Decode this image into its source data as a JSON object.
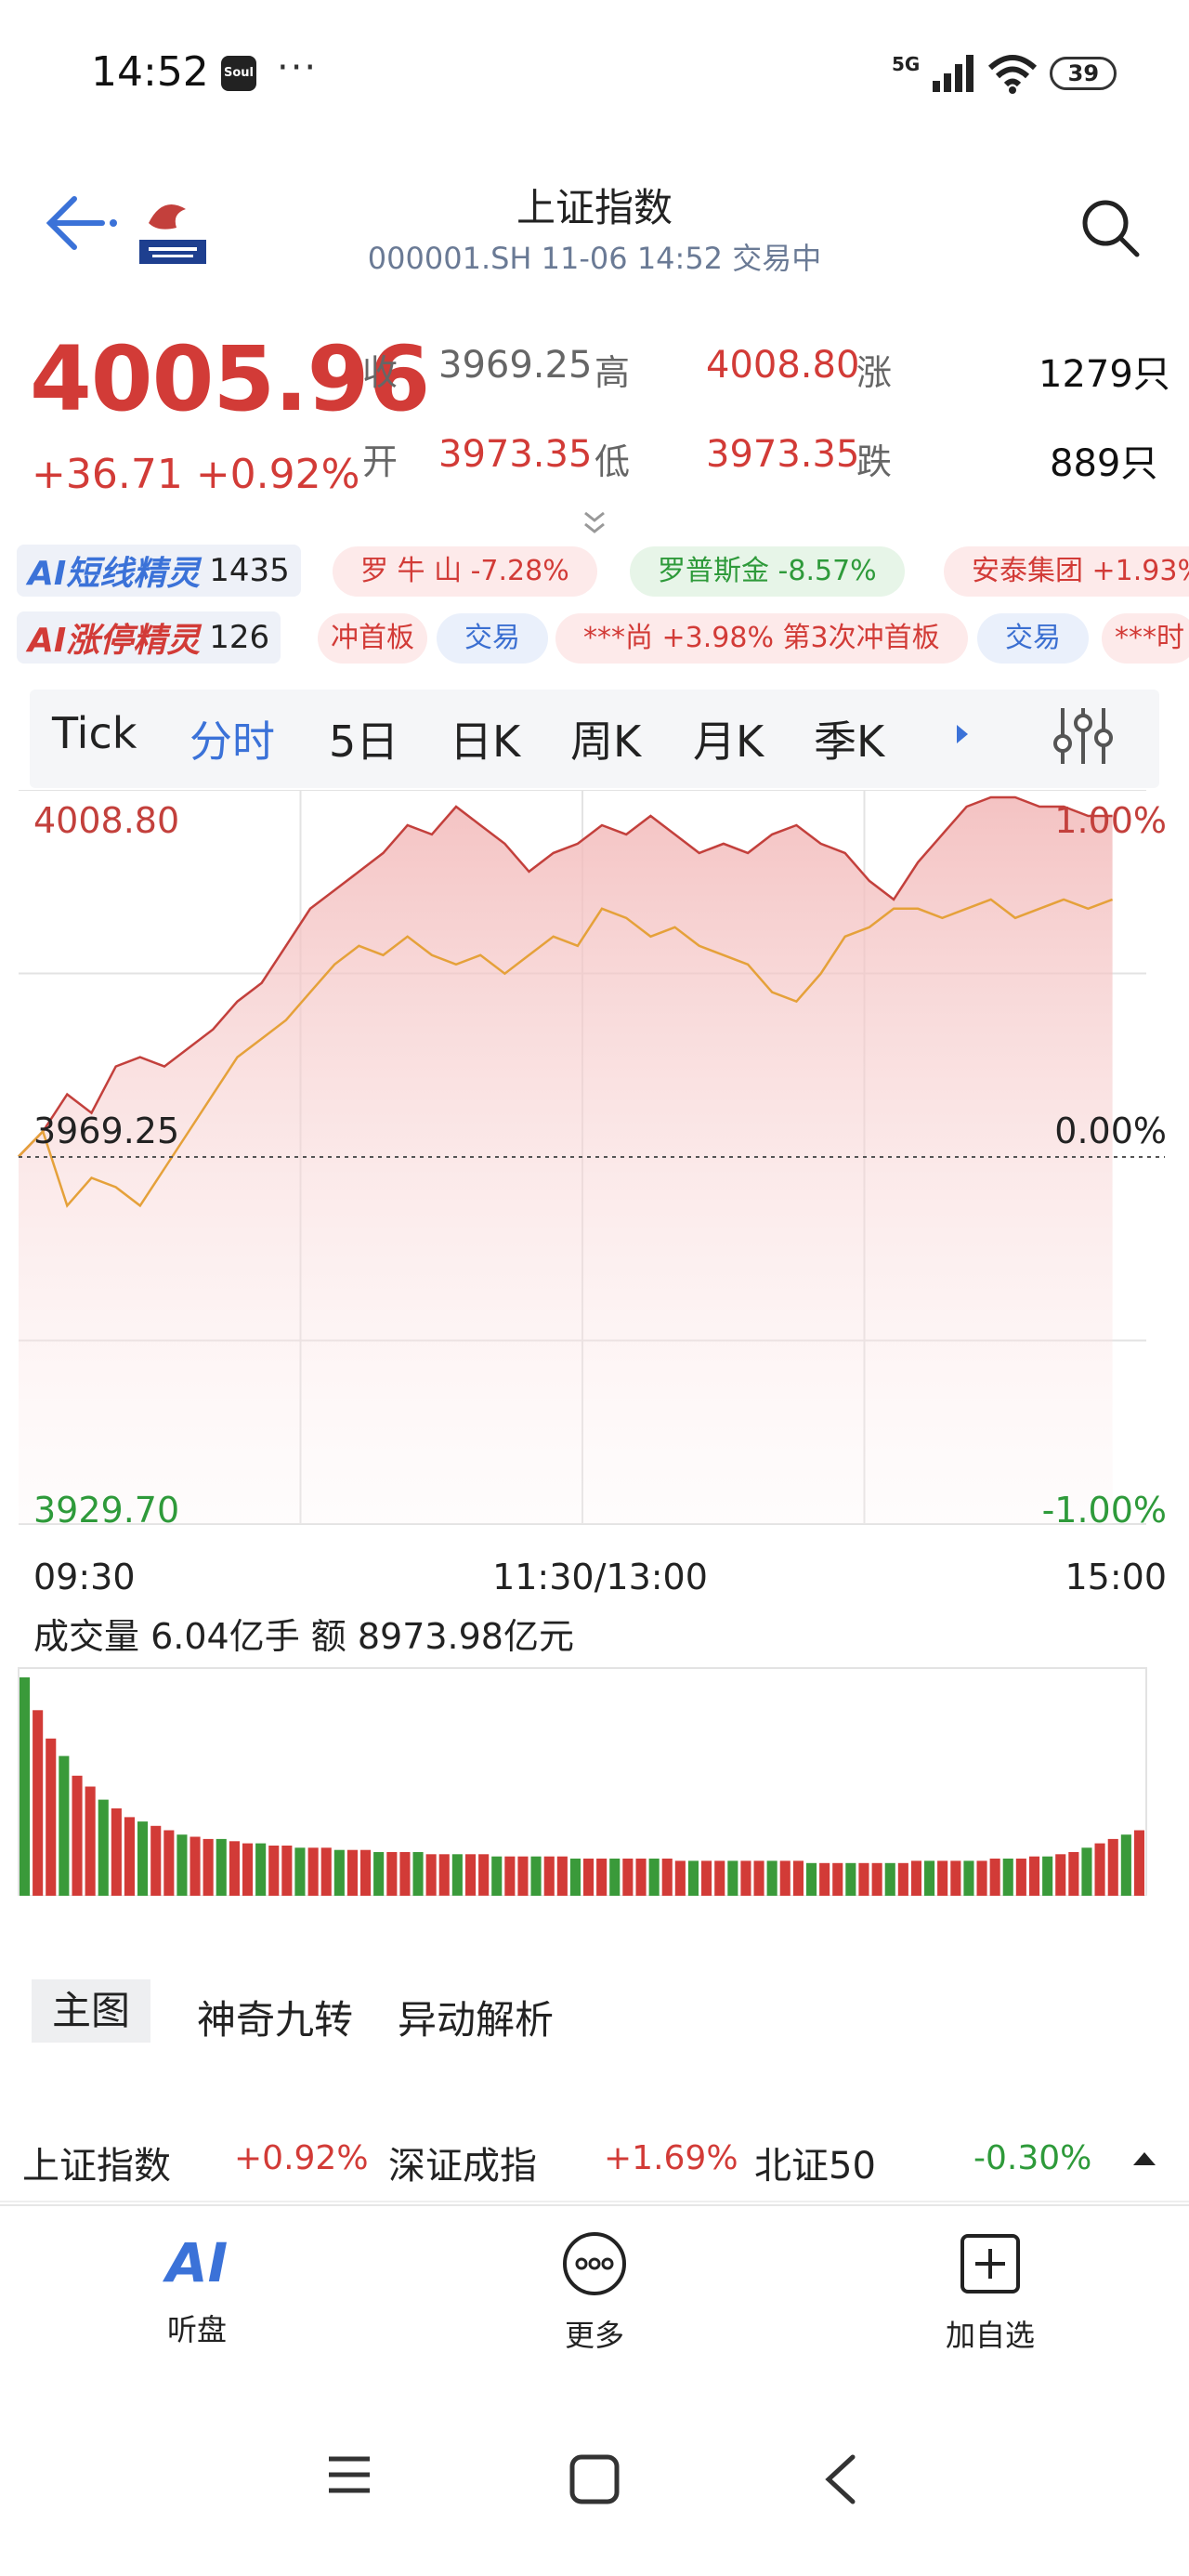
{
  "status_bar": {
    "time": "14:52",
    "app_badge": "Soul",
    "dots": "···",
    "network": "5G",
    "battery": "39"
  },
  "header": {
    "title": "上证指数",
    "subtitle": "000001.SH 11-06 14:52 交易中"
  },
  "quote": {
    "price": "4005.96",
    "change": "+36.71 +0.92%",
    "close_label": "收",
    "close_value": "3969.25",
    "high_label": "高",
    "high_value": "4008.80",
    "rise_label": "涨",
    "rise_count": "1279只",
    "open_label": "开",
    "open_value": "3973.35",
    "low_label": "低",
    "low_value": "3973.35",
    "fall_label": "跌",
    "fall_count": "889只"
  },
  "ai_rows": {
    "short_title": "AI短线精灵",
    "short_count": "1435",
    "limit_title": "AI涨停精灵",
    "limit_count": "126",
    "short_chips": [
      "罗 牛 山 -7.28%",
      "罗普斯金 -8.57%",
      "安泰集团 +1.93%"
    ],
    "limit_chips": [
      "冲首板",
      "交易",
      "***尚 +3.98% 第3次冲首板",
      "交易",
      "***时"
    ]
  },
  "tabs": [
    "Tick",
    "分时",
    "5日",
    "日K",
    "周K",
    "月K",
    "季K"
  ],
  "chart_data": {
    "type": "line",
    "price_axis": {
      "high": "4008.80",
      "base": "3969.25",
      "low": "3929.70"
    },
    "pct_axis": {
      "high": "1.00%",
      "base": "0.00%",
      "low": "-1.00%"
    },
    "ylim": [
      3929.7,
      4008.8
    ],
    "x_labels": [
      "09:30",
      "11:30/13:00",
      "15:00"
    ],
    "series": [
      {
        "values": [
          3969.3,
          3972,
          3976,
          3974,
          3979,
          3980,
          3979,
          3981,
          3983,
          3986,
          3988,
          3992,
          3996,
          3998,
          4000,
          4002,
          4005,
          4004,
          4007,
          4005,
          4003,
          4000,
          4002,
          4003,
          4005,
          4004,
          4006,
          4004,
          4002,
          4003,
          4002,
          4004,
          4005,
          4003,
          4002,
          3999,
          3997,
          4001,
          4004,
          4007,
          4008,
          4008,
          4007,
          4007,
          4006,
          4006
        ],
        "color": "#c3403c"
      },
      {
        "values": [
          3969.3,
          3972,
          3964,
          3967,
          3966,
          3964,
          3968,
          3972,
          3976,
          3980,
          3982,
          3984,
          3987,
          3990,
          3992,
          3991,
          3993,
          3991,
          3990,
          3991,
          3989,
          3991,
          3993,
          3992,
          3996,
          3995,
          3993,
          3994,
          3992,
          3991,
          3990,
          3987,
          3986,
          3989,
          3993,
          3994,
          3996,
          3996,
          3995,
          3996,
          3997,
          3995,
          3996,
          3997,
          3996,
          3997
        ],
        "color": "#e5a13a"
      }
    ]
  },
  "volume": {
    "text": "成交量 6.04亿手 额 8973.98亿元",
    "bars": [
      100,
      85,
      72,
      64,
      55,
      50,
      44,
      40,
      36,
      34,
      32,
      30,
      28,
      27,
      26,
      26,
      25,
      24,
      24,
      23,
      23,
      22,
      22,
      22,
      21,
      21,
      21,
      20,
      20,
      20,
      20,
      19,
      19,
      19,
      19,
      19,
      18,
      18,
      18,
      18,
      18,
      18,
      17,
      17,
      17,
      17,
      17,
      17,
      17,
      17,
      16,
      16,
      16,
      16,
      16,
      16,
      16,
      16,
      16,
      16,
      15,
      15,
      15,
      15,
      15,
      15,
      15,
      15,
      16,
      16,
      16,
      16,
      16,
      16,
      17,
      17,
      17,
      18,
      18,
      19,
      20,
      22,
      24,
      26,
      28,
      30
    ]
  },
  "sub_tabs": {
    "active": "主图",
    "others": [
      "神奇九转",
      "异动解析"
    ]
  },
  "indices": [
    {
      "name": "上证指数",
      "value": "+0.92%",
      "color": "#d23b37"
    },
    {
      "name": "深证成指",
      "value": "+1.69%",
      "color": "#d23b37"
    },
    {
      "name": "北证50",
      "value": "-0.30%",
      "color": "#2e9a3a"
    }
  ],
  "bottom_nav": {
    "listen": "听盘",
    "more": "更多",
    "watchlist": "加自选",
    "ai_logo": "AI"
  }
}
